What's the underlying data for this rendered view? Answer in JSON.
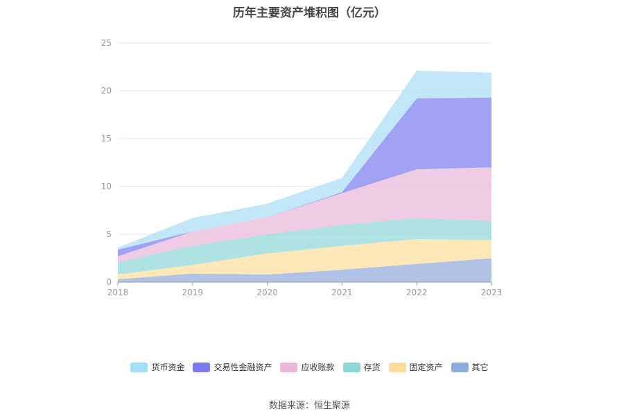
{
  "title": "历年主要资产堆积图（亿元）",
  "source": "数据来源：恒生聚源",
  "chart_data": {
    "type": "area",
    "stacked": true,
    "categories": [
      "2018",
      "2019",
      "2020",
      "2021",
      "2022",
      "2023"
    ],
    "ylim": [
      0,
      25
    ],
    "yticks": [
      "0",
      "5",
      "10",
      "15",
      "20",
      "25"
    ],
    "grid": true,
    "legend_position": "bottom",
    "series": [
      {
        "name": "其它",
        "color": "#8faadc",
        "values": [
          0.3,
          0.9,
          0.8,
          1.3,
          1.9,
          2.5
        ]
      },
      {
        "name": "固定资产",
        "color": "#fddd9b",
        "values": [
          0.5,
          0.9,
          2.2,
          2.5,
          2.6,
          1.9
        ]
      },
      {
        "name": "存货",
        "color": "#8dd6d6",
        "values": [
          1.3,
          2.0,
          2.0,
          2.2,
          2.2,
          2.0
        ]
      },
      {
        "name": "应收账款",
        "color": "#e9b7d9",
        "values": [
          0.6,
          1.5,
          1.8,
          3.3,
          5.1,
          5.6
        ]
      },
      {
        "name": "交易性金融资产",
        "color": "#7b7bf0",
        "values": [
          0.7,
          0.0,
          0.0,
          0.1,
          7.4,
          7.3
        ]
      },
      {
        "name": "货币资金",
        "color": "#a6ddf7",
        "values": [
          0.2,
          1.4,
          1.4,
          1.5,
          2.9,
          2.6
        ]
      }
    ]
  }
}
